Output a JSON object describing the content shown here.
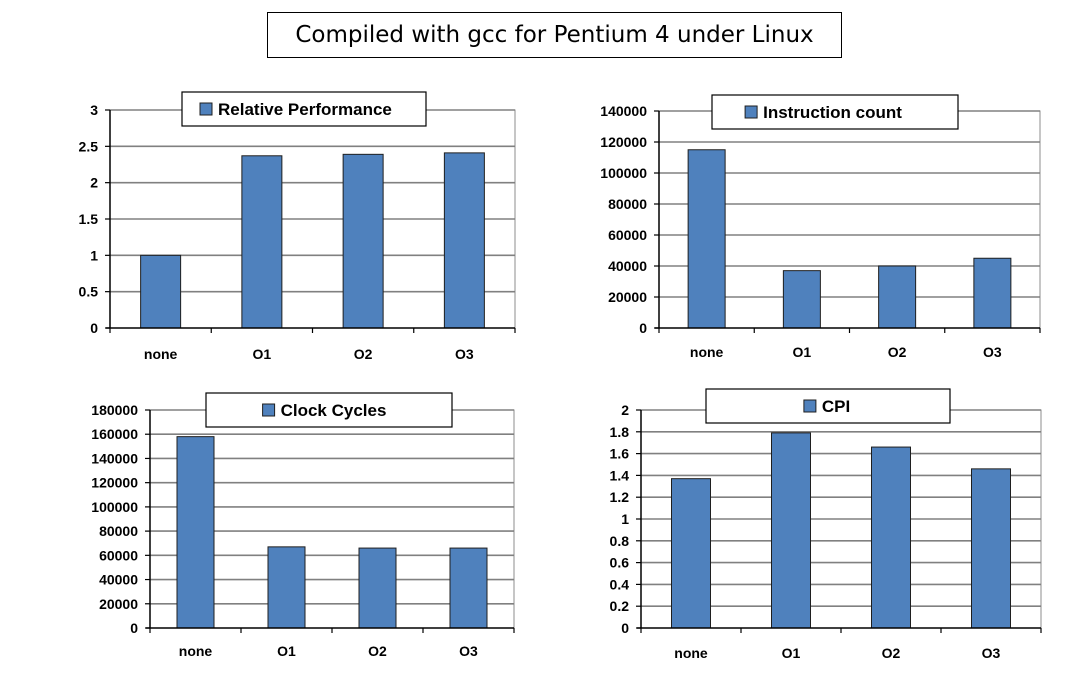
{
  "title": "Compiled with gcc for Pentium 4 under Linux",
  "colors": {
    "bar": "#4F81BD",
    "bar_stroke": "#1F1F1F",
    "grid": "#7f7f7f"
  },
  "chart_data": [
    {
      "type": "bar",
      "series": [
        {
          "name": "Relative Performance",
          "values": [
            1,
            2.37,
            2.39,
            2.41
          ]
        }
      ],
      "categories": [
        "none",
        "O1",
        "O2",
        "O3"
      ],
      "ylim": [
        0,
        3
      ],
      "yticks": [
        "0",
        "0.5",
        "1",
        "1.5",
        "2",
        "2.5",
        "3"
      ],
      "ytick_values": [
        0,
        0.5,
        1,
        1.5,
        2,
        2.5,
        3
      ],
      "grid": true,
      "legend": "top-center"
    },
    {
      "type": "bar",
      "series": [
        {
          "name": "Instruction count",
          "values": [
            115000,
            37000,
            40000,
            45000
          ]
        }
      ],
      "categories": [
        "none",
        "O1",
        "O2",
        "O3"
      ],
      "ylim": [
        0,
        140000
      ],
      "yticks": [
        "0",
        "20000",
        "40000",
        "60000",
        "80000",
        "100000",
        "120000",
        "140000"
      ],
      "ytick_values": [
        0,
        20000,
        40000,
        60000,
        80000,
        100000,
        120000,
        140000
      ],
      "grid": true,
      "legend": "top-center"
    },
    {
      "type": "bar",
      "series": [
        {
          "name": "Clock Cycles",
          "values": [
            158000,
            67000,
            66000,
            66000
          ]
        }
      ],
      "categories": [
        "none",
        "O1",
        "O2",
        "O3"
      ],
      "ylim": [
        0,
        180000
      ],
      "yticks": [
        "0",
        "20000",
        "40000",
        "60000",
        "80000",
        "100000",
        "120000",
        "140000",
        "160000",
        "180000"
      ],
      "ytick_values": [
        0,
        20000,
        40000,
        60000,
        80000,
        100000,
        120000,
        140000,
        160000,
        180000
      ],
      "grid": true,
      "legend": "top-center"
    },
    {
      "type": "bar",
      "series": [
        {
          "name": "CPI",
          "values": [
            1.37,
            1.79,
            1.66,
            1.46
          ]
        }
      ],
      "categories": [
        "none",
        "O1",
        "O2",
        "O3"
      ],
      "ylim": [
        0,
        2
      ],
      "yticks": [
        "0",
        "0.2",
        "0.4",
        "0.6",
        "0.8",
        "1",
        "1.2",
        "1.4",
        "1.6",
        "1.8",
        "2"
      ],
      "ytick_values": [
        0,
        0.2,
        0.4,
        0.6,
        0.8,
        1,
        1.2,
        1.4,
        1.6,
        1.8,
        2
      ],
      "grid": true,
      "legend": "top-center"
    }
  ]
}
